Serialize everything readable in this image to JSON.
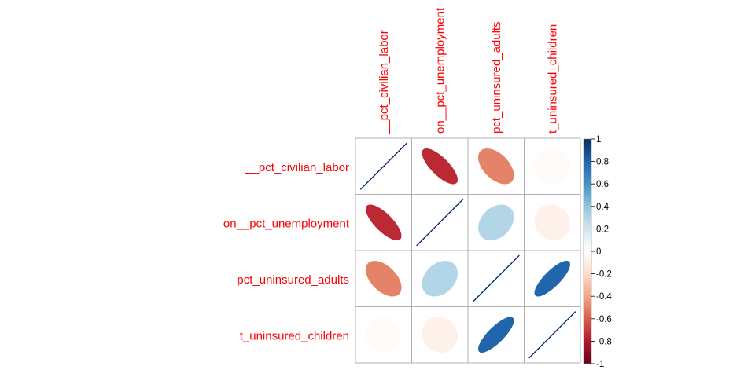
{
  "chart_data": {
    "type": "heatmap",
    "title": "",
    "variables": [
      "__pct_civilian_labor",
      "on__pct_unemployment",
      "pct_uninsured_adults",
      "t_uninsured_children"
    ],
    "col_labels": [
      "__pct_civilian_labor",
      "on__pct_unemployment",
      "pct_uninsured_adults",
      "t_uninsured_children"
    ],
    "row_labels": [
      "__pct_civilian_labor",
      "on__pct_unemployment",
      "pct_uninsured_adults",
      "t_uninsured_children"
    ],
    "matrix": [
      [
        1.0,
        -0.75,
        -0.5,
        -0.02
      ],
      [
        -0.75,
        1.0,
        0.3,
        -0.08
      ],
      [
        -0.5,
        0.3,
        1.0,
        0.8
      ],
      [
        -0.02,
        -0.08,
        0.8,
        1.0
      ]
    ],
    "colorbar": {
      "ticks": [
        "1",
        "0.8",
        "0.6",
        "0.4",
        "0.2",
        "0",
        "-0.2",
        "-0.4",
        "-0.6",
        "-0.8",
        "-1"
      ],
      "range": [
        -1,
        1
      ]
    },
    "colors": {
      "label": "#ff0000",
      "grid": "#b0b0b0",
      "tick_text": "#000000"
    }
  }
}
